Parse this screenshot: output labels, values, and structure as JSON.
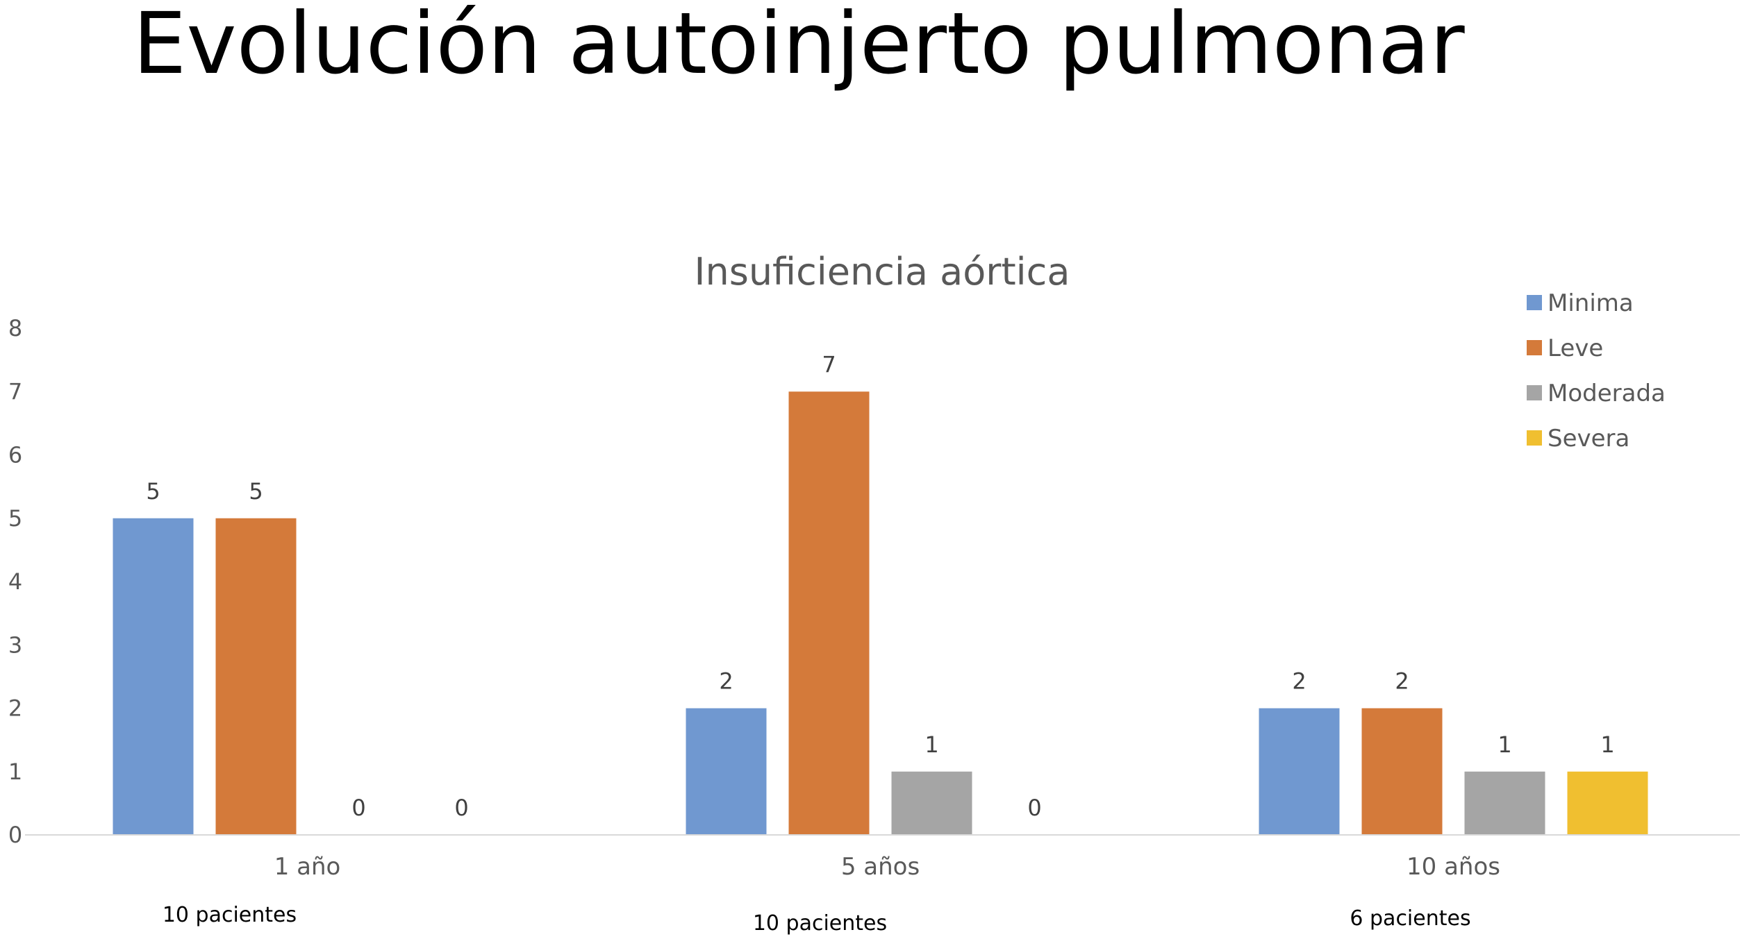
{
  "main_title": "Evolución autoinjerto pulmonar",
  "chart_data": {
    "type": "bar",
    "title": "Insuficiencia aórtica",
    "categories": [
      "1 año",
      "5 años",
      "10 años"
    ],
    "series": [
      {
        "name": "Minima",
        "values": [
          5,
          2,
          2
        ],
        "color": "#7098d0"
      },
      {
        "name": "Leve",
        "values": [
          5,
          7,
          2
        ],
        "color": "#d47a3a"
      },
      {
        "name": "Moderada",
        "values": [
          0,
          1,
          1
        ],
        "color": "#a5a5a5"
      },
      {
        "name": "Severa",
        "values": [
          0,
          0,
          1
        ],
        "color": "#f0bf30"
      }
    ],
    "ylim": [
      0,
      8
    ],
    "yticks": [
      0,
      1,
      2,
      3,
      4,
      5,
      6,
      7,
      8
    ],
    "data_labels": true,
    "legend": "top-right",
    "grid": false,
    "xlabel": "",
    "ylabel": ""
  },
  "notes": [
    "10 pacientes",
    "10 pacientes",
    "6 pacientes"
  ]
}
